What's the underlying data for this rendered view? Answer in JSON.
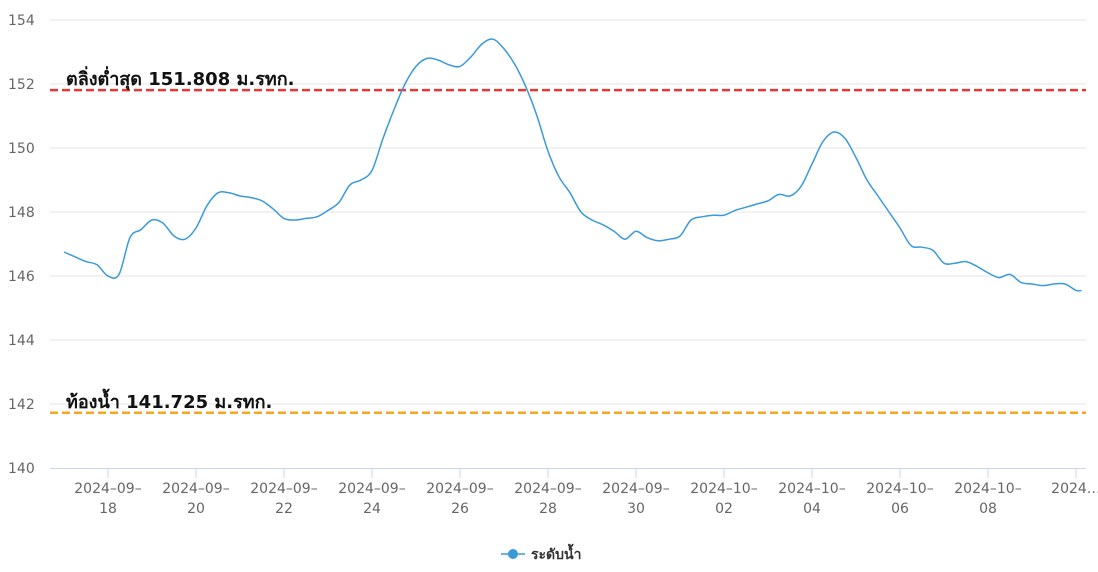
{
  "chart_data": {
    "type": "line",
    "title": "",
    "xlabel": "",
    "ylabel": "",
    "ylim": [
      140,
      154
    ],
    "yticks": [
      140,
      142,
      144,
      146,
      148,
      150,
      152,
      154
    ],
    "grid": "horizontal",
    "legend_position": "bottom-center",
    "x_tick_labels": [
      {
        "date": "2024-09-18",
        "line1": "2024–09–",
        "line2": "18"
      },
      {
        "date": "2024-09-20",
        "line1": "2024–09–",
        "line2": "20"
      },
      {
        "date": "2024-09-22",
        "line1": "2024–09–",
        "line2": "22"
      },
      {
        "date": "2024-09-24",
        "line1": "2024–09–",
        "line2": "24"
      },
      {
        "date": "2024-09-26",
        "line1": "2024–09–",
        "line2": "26"
      },
      {
        "date": "2024-09-28",
        "line1": "2024–09–",
        "line2": "28"
      },
      {
        "date": "2024-09-30",
        "line1": "2024–09–",
        "line2": "30"
      },
      {
        "date": "2024-10-02",
        "line1": "2024–10–",
        "line2": "02"
      },
      {
        "date": "2024-10-04",
        "line1": "2024–10–",
        "line2": "04"
      },
      {
        "date": "2024-10-06",
        "line1": "2024–10–",
        "line2": "06"
      },
      {
        "date": "2024-10-08",
        "line1": "2024–10–",
        "line2": "08"
      },
      {
        "date": "2024-10-10",
        "line1": "2024…",
        "line2": ""
      }
    ],
    "series": [
      {
        "name": "ระดับน้ำ",
        "color": "#3a9ad9",
        "points": [
          [
            "2024-09-17 00:00",
            146.75
          ],
          [
            "2024-09-17 06:00",
            146.6
          ],
          [
            "2024-09-17 12:00",
            146.45
          ],
          [
            "2024-09-17 18:00",
            146.35
          ],
          [
            "2024-09-18 00:00",
            146.0
          ],
          [
            "2024-09-18 06:00",
            146.05
          ],
          [
            "2024-09-18 12:00",
            147.2
          ],
          [
            "2024-09-18 18:00",
            147.45
          ],
          [
            "2024-09-19 00:00",
            147.75
          ],
          [
            "2024-09-19 06:00",
            147.65
          ],
          [
            "2024-09-19 12:00",
            147.25
          ],
          [
            "2024-09-19 18:00",
            147.15
          ],
          [
            "2024-09-20 00:00",
            147.5
          ],
          [
            "2024-09-20 06:00",
            148.2
          ],
          [
            "2024-09-20 12:00",
            148.6
          ],
          [
            "2024-09-20 18:00",
            148.6
          ],
          [
            "2024-09-21 00:00",
            148.5
          ],
          [
            "2024-09-21 06:00",
            148.45
          ],
          [
            "2024-09-21 12:00",
            148.35
          ],
          [
            "2024-09-21 18:00",
            148.1
          ],
          [
            "2024-09-22 00:00",
            147.8
          ],
          [
            "2024-09-22 06:00",
            147.75
          ],
          [
            "2024-09-22 12:00",
            147.8
          ],
          [
            "2024-09-22 18:00",
            147.85
          ],
          [
            "2024-09-23 00:00",
            148.05
          ],
          [
            "2024-09-23 06:00",
            148.3
          ],
          [
            "2024-09-23 12:00",
            148.85
          ],
          [
            "2024-09-23 18:00",
            149.0
          ],
          [
            "2024-09-24 00:00",
            149.3
          ],
          [
            "2024-09-24 06:00",
            150.3
          ],
          [
            "2024-09-24 12:00",
            151.2
          ],
          [
            "2024-09-24 18:00",
            152.0
          ],
          [
            "2024-09-25 00:00",
            152.55
          ],
          [
            "2024-09-25 06:00",
            152.8
          ],
          [
            "2024-09-25 12:00",
            152.75
          ],
          [
            "2024-09-25 18:00",
            152.6
          ],
          [
            "2024-09-26 00:00",
            152.55
          ],
          [
            "2024-09-26 06:00",
            152.85
          ],
          [
            "2024-09-26 12:00",
            153.25
          ],
          [
            "2024-09-26 18:00",
            153.4
          ],
          [
            "2024-09-27 00:00",
            153.1
          ],
          [
            "2024-09-27 06:00",
            152.6
          ],
          [
            "2024-09-27 12:00",
            151.9
          ],
          [
            "2024-09-27 18:00",
            151.0
          ],
          [
            "2024-09-28 00:00",
            149.9
          ],
          [
            "2024-09-28 06:00",
            149.1
          ],
          [
            "2024-09-28 12:00",
            148.6
          ],
          [
            "2024-09-28 18:00",
            148.0
          ],
          [
            "2024-09-29 00:00",
            147.75
          ],
          [
            "2024-09-29 06:00",
            147.6
          ],
          [
            "2024-09-29 12:00",
            147.4
          ],
          [
            "2024-09-29 18:00",
            147.15
          ],
          [
            "2024-09-30 00:00",
            147.4
          ],
          [
            "2024-09-30 06:00",
            147.2
          ],
          [
            "2024-09-30 12:00",
            147.1
          ],
          [
            "2024-09-30 18:00",
            147.15
          ],
          [
            "2024-10-01 00:00",
            147.25
          ],
          [
            "2024-10-01 06:00",
            147.75
          ],
          [
            "2024-10-01 12:00",
            147.85
          ],
          [
            "2024-10-01 18:00",
            147.9
          ],
          [
            "2024-10-02 00:00",
            147.9
          ],
          [
            "2024-10-02 06:00",
            148.05
          ],
          [
            "2024-10-02 12:00",
            148.15
          ],
          [
            "2024-10-02 18:00",
            148.25
          ],
          [
            "2024-10-03 00:00",
            148.35
          ],
          [
            "2024-10-03 06:00",
            148.55
          ],
          [
            "2024-10-03 12:00",
            148.5
          ],
          [
            "2024-10-03 18:00",
            148.8
          ],
          [
            "2024-10-04 00:00",
            149.5
          ],
          [
            "2024-10-04 06:00",
            150.2
          ],
          [
            "2024-10-04 12:00",
            150.5
          ],
          [
            "2024-10-04 18:00",
            150.3
          ],
          [
            "2024-10-05 00:00",
            149.7
          ],
          [
            "2024-10-05 06:00",
            149.0
          ],
          [
            "2024-10-05 12:00",
            148.5
          ],
          [
            "2024-10-05 18:00",
            148.0
          ],
          [
            "2024-10-06 00:00",
            147.5
          ],
          [
            "2024-10-06 06:00",
            146.95
          ],
          [
            "2024-10-06 12:00",
            146.9
          ],
          [
            "2024-10-06 18:00",
            146.8
          ],
          [
            "2024-10-07 00:00",
            146.4
          ],
          [
            "2024-10-07 06:00",
            146.4
          ],
          [
            "2024-10-07 12:00",
            146.45
          ],
          [
            "2024-10-07 18:00",
            146.3
          ],
          [
            "2024-10-08 00:00",
            146.1
          ],
          [
            "2024-10-08 06:00",
            145.95
          ],
          [
            "2024-10-08 12:00",
            146.05
          ],
          [
            "2024-10-08 18:00",
            145.8
          ],
          [
            "2024-10-09 00:00",
            145.75
          ],
          [
            "2024-10-09 06:00",
            145.7
          ],
          [
            "2024-10-09 12:00",
            145.75
          ],
          [
            "2024-10-09 18:00",
            145.75
          ],
          [
            "2024-10-10 00:00",
            145.55
          ],
          [
            "2024-10-10 03:00",
            145.55
          ]
        ]
      }
    ],
    "reference_lines": [
      {
        "value": 151.808,
        "label": "ตลิ่งต่ำสุด 151.808 ม.รทก.",
        "color": "#e53935",
        "style": "dashed"
      },
      {
        "value": 141.725,
        "label": "ท้องน้ำ 141.725 ม.รทก.",
        "color": "#f5a623",
        "style": "dashed"
      }
    ]
  }
}
